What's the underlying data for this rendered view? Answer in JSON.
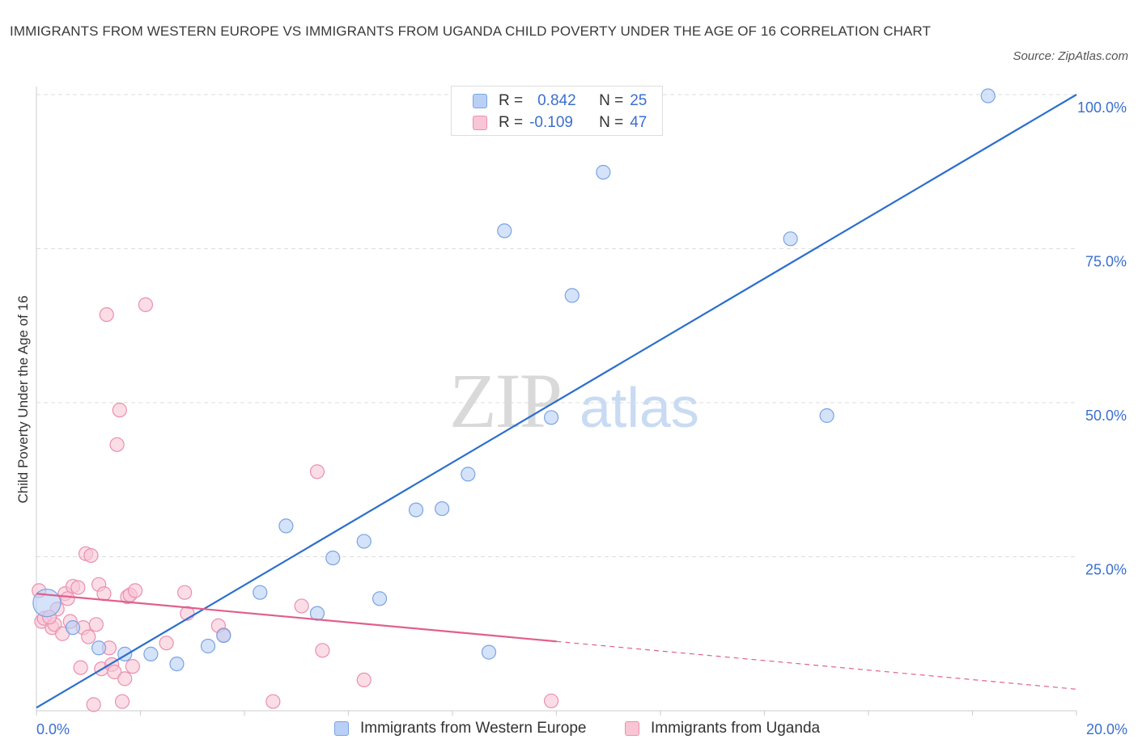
{
  "title": "IMMIGRANTS FROM WESTERN EUROPE VS IMMIGRANTS FROM UGANDA CHILD POVERTY UNDER THE AGE OF 16 CORRELATION CHART",
  "source": "Source: ZipAtlas.com",
  "watermark": {
    "zip": "ZIP",
    "atlas": "atlas"
  },
  "colors": {
    "blue_fill": "#b8d0f5",
    "blue_stroke": "#7aa3e3",
    "blue_line": "#2b6fcc",
    "pink_fill": "#f8c6d5",
    "pink_stroke": "#eb8faf",
    "pink_line": "#e0608d",
    "tick_label": "#3a6fd0",
    "grid": "#dddddd"
  },
  "stats": {
    "blue": {
      "r_label": "R =",
      "r_value": "0.842",
      "n_label": "N =",
      "n_value": "25"
    },
    "pink": {
      "r_label": "R =",
      "r_value": "-0.109",
      "n_label": "N =",
      "n_value": "47"
    }
  },
  "legend": {
    "blue": "Immigrants from Western Europe",
    "pink": "Immigrants from Uganda"
  },
  "chart_data": {
    "type": "scatter",
    "title": "IMMIGRANTS FROM WESTERN EUROPE VS IMMIGRANTS FROM UGANDA CHILD POVERTY UNDER THE AGE OF 16 CORRELATION CHART",
    "xlabel": "",
    "ylabel": "Child Poverty Under the Age of 16",
    "xlim": [
      0,
      20
    ],
    "ylim": [
      0,
      100
    ],
    "x_tick_labels": [
      {
        "value": 0,
        "label": "0.0%"
      },
      {
        "value": 20,
        "label": "20.0%"
      }
    ],
    "y_tick_labels": [
      {
        "value": 25,
        "label": "25.0%"
      },
      {
        "value": 50,
        "label": "50.0%"
      },
      {
        "value": 75,
        "label": "75.0%"
      },
      {
        "value": 100,
        "label": "100.0%"
      }
    ],
    "series": [
      {
        "name": "Immigrants from Western Europe",
        "color": "blue",
        "points": [
          [
            0.2,
            17.5
          ],
          [
            0.7,
            13.5
          ],
          [
            1.2,
            10.2
          ],
          [
            1.7,
            9.2
          ],
          [
            2.2,
            9.2
          ],
          [
            2.7,
            7.6
          ],
          [
            3.3,
            10.5
          ],
          [
            3.6,
            12.2
          ],
          [
            4.3,
            19.2
          ],
          [
            4.8,
            30.0
          ],
          [
            5.4,
            15.8
          ],
          [
            5.7,
            24.8
          ],
          [
            6.3,
            27.5
          ],
          [
            6.6,
            18.2
          ],
          [
            7.3,
            32.6
          ],
          [
            7.8,
            32.8
          ],
          [
            8.3,
            38.4
          ],
          [
            8.7,
            9.5
          ],
          [
            9.0,
            77.9
          ],
          [
            9.9,
            47.6
          ],
          [
            10.3,
            67.4
          ],
          [
            10.9,
            87.4
          ],
          [
            14.5,
            76.6
          ],
          [
            15.2,
            47.9
          ],
          [
            18.3,
            99.8
          ]
        ],
        "trend": {
          "x0": 0,
          "y0": 0.5,
          "x1": 20,
          "y1": 100,
          "solid_until": 20
        }
      },
      {
        "name": "Immigrants from Uganda",
        "color": "pink",
        "points": [
          [
            0.05,
            19.5
          ],
          [
            0.1,
            14.5
          ],
          [
            0.15,
            15.0
          ],
          [
            0.3,
            13.5
          ],
          [
            0.35,
            14.0
          ],
          [
            0.4,
            16.5
          ],
          [
            0.5,
            12.5
          ],
          [
            0.55,
            19.0
          ],
          [
            0.6,
            18.2
          ],
          [
            0.65,
            14.5
          ],
          [
            0.7,
            20.2
          ],
          [
            0.8,
            20.0
          ],
          [
            0.85,
            7.0
          ],
          [
            0.9,
            13.5
          ],
          [
            0.95,
            25.5
          ],
          [
            1.0,
            12.0
          ],
          [
            1.05,
            25.2
          ],
          [
            1.1,
            1.0
          ],
          [
            1.15,
            14.0
          ],
          [
            1.2,
            20.5
          ],
          [
            1.25,
            6.8
          ],
          [
            1.3,
            19.0
          ],
          [
            1.35,
            64.3
          ],
          [
            1.4,
            10.2
          ],
          [
            1.45,
            7.5
          ],
          [
            1.5,
            6.3
          ],
          [
            1.55,
            43.2
          ],
          [
            1.6,
            48.8
          ],
          [
            1.65,
            1.5
          ],
          [
            1.7,
            5.2
          ],
          [
            1.75,
            18.5
          ],
          [
            1.8,
            18.8
          ],
          [
            1.85,
            7.2
          ],
          [
            1.9,
            19.5
          ],
          [
            2.1,
            65.9
          ],
          [
            2.5,
            11.0
          ],
          [
            2.85,
            19.2
          ],
          [
            2.9,
            15.8
          ],
          [
            3.5,
            13.8
          ],
          [
            3.6,
            12.3
          ],
          [
            4.55,
            1.5
          ],
          [
            5.1,
            17.0
          ],
          [
            5.4,
            38.8
          ],
          [
            5.5,
            9.8
          ],
          [
            6.3,
            5.0
          ],
          [
            9.9,
            1.6
          ],
          [
            0.25,
            15.2
          ]
        ],
        "trend": {
          "x0": 0,
          "y0": 19.0,
          "x1": 20,
          "y1": 3.5,
          "solid_until": 10
        }
      }
    ]
  }
}
